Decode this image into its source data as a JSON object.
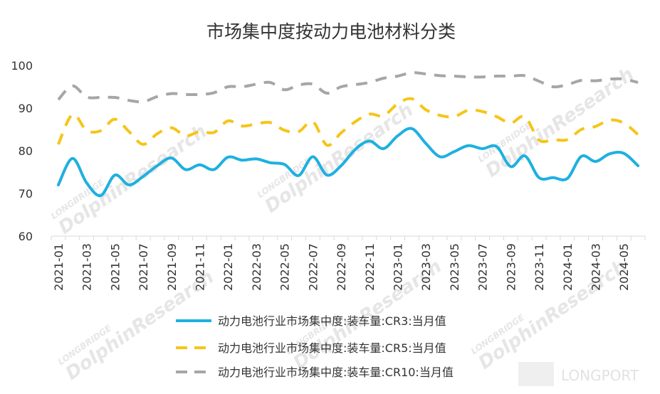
{
  "chart_data": {
    "type": "line",
    "title": "市场集中度按动力电池材料分类",
    "xlabel": "",
    "ylabel": "",
    "ylim": [
      60,
      100
    ],
    "yticks": [
      60,
      70,
      80,
      90,
      100
    ],
    "grid": false,
    "legend_position": "bottom",
    "x": [
      "2021-01",
      "2021-02",
      "2021-03",
      "2021-04",
      "2021-05",
      "2021-06",
      "2021-07",
      "2021-08",
      "2021-09",
      "2021-10",
      "2021-11",
      "2021-12",
      "2022-01",
      "2022-02",
      "2022-03",
      "2022-04",
      "2022-05",
      "2022-06",
      "2022-07",
      "2022-08",
      "2022-09",
      "2022-10",
      "2022-11",
      "2022-12",
      "2023-01",
      "2023-02",
      "2023-03",
      "2023-04",
      "2023-05",
      "2023-06",
      "2023-07",
      "2023-08",
      "2023-09",
      "2023-10",
      "2023-11",
      "2023-12",
      "2024-01",
      "2024-02",
      "2024-03",
      "2024-04",
      "2024-05",
      "2024-06"
    ],
    "xtick_labels": [
      "2021-01",
      "2021-03",
      "2021-05",
      "2021-07",
      "2021-09",
      "2021-11",
      "2022-01",
      "2022-03",
      "2022-05",
      "2022-07",
      "2022-09",
      "2022-11",
      "2023-01",
      "2023-03",
      "2023-05",
      "2023-07",
      "2023-09",
      "2023-11",
      "2024-01",
      "2024-03",
      "2024-05"
    ],
    "series": [
      {
        "name": "动力电池行业市场集中度:装车量:CR3:当月值",
        "color": "#1fb0e0",
        "style": "solid",
        "values": [
          72.0,
          78.2,
          72.5,
          69.5,
          74.3,
          72.0,
          74.0,
          76.5,
          78.3,
          75.6,
          76.7,
          75.6,
          78.5,
          77.8,
          78.1,
          77.2,
          76.8,
          74.2,
          78.6,
          74.3,
          76.5,
          80.3,
          82.3,
          80.5,
          83.5,
          85.2,
          81.7,
          78.6,
          79.8,
          81.2,
          80.5,
          81.0,
          76.3,
          78.8,
          73.7,
          73.7,
          73.5,
          78.7,
          77.5,
          79.3,
          79.4,
          76.5
        ]
      },
      {
        "name": "动力电池行业市场集中度:装车量:CR5:当月值",
        "color": "#f5c518",
        "style": "dashed",
        "values": [
          81.5,
          88.5,
          84.8,
          84.7,
          87.4,
          84.5,
          81.5,
          84.0,
          85.4,
          83.5,
          84.5,
          84.3,
          87.0,
          85.8,
          86.3,
          86.6,
          84.8,
          84.5,
          86.8,
          81.3,
          84.2,
          86.8,
          88.6,
          88.2,
          91.0,
          92.2,
          89.6,
          88.3,
          88.0,
          89.5,
          89.2,
          88.0,
          86.5,
          88.0,
          82.5,
          82.6,
          82.6,
          85.0,
          85.7,
          87.2,
          86.5,
          83.8
        ]
      },
      {
        "name": "动力电池行业市场集中度:装车量:CR10:当月值",
        "color": "#a6a6a6",
        "style": "dashed",
        "values": [
          92.0,
          95.2,
          92.6,
          92.5,
          92.5,
          91.8,
          91.5,
          92.7,
          93.4,
          93.2,
          93.2,
          93.6,
          95.0,
          95.0,
          95.6,
          96.0,
          94.3,
          95.4,
          95.6,
          93.5,
          95.0,
          95.5,
          96.0,
          97.0,
          97.5,
          98.3,
          98.0,
          97.6,
          97.5,
          97.3,
          97.3,
          97.5,
          97.5,
          97.6,
          96.3,
          95.0,
          95.5,
          96.5,
          96.4,
          96.8,
          96.8,
          96.0
        ]
      }
    ]
  },
  "watermark": {
    "brand_top": "LONGBRIDGE",
    "brand_main": "DolphinResearch",
    "corner_logo": "LONGPORT"
  }
}
